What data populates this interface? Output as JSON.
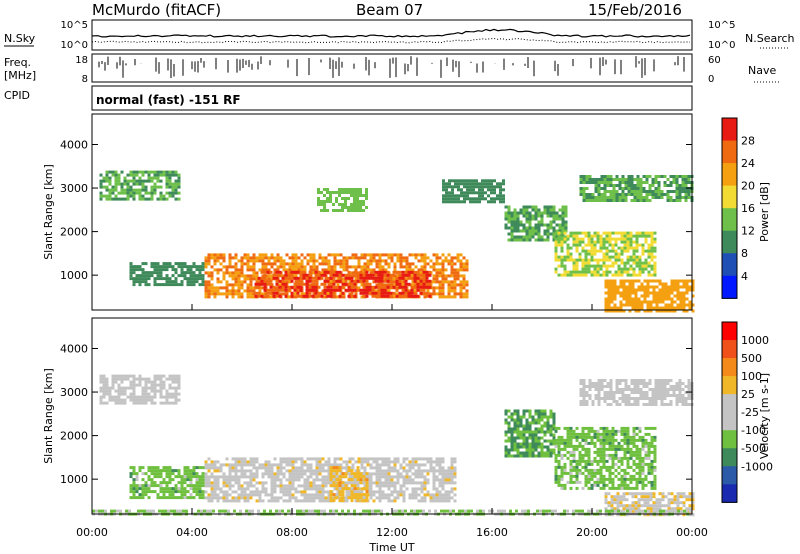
{
  "header": {
    "station": "McMurdo (fitACF)",
    "beam": "Beam 07",
    "date": "15/Feb/2016"
  },
  "status_panel": {
    "left_label_1": "N.Sky",
    "left_label_2a": "Freq.",
    "left_label_2b": "[MHz]",
    "left_label_3": "CPID",
    "right_label_1": "N.Search",
    "right_label_2": "Nave",
    "left_ticks_top": [
      "10^5",
      "10^0"
    ],
    "left_ticks_mid": [
      "18",
      "8"
    ],
    "right_ticks_top": [
      "10^5",
      "10^0"
    ],
    "right_ticks_mid": [
      "60",
      "0"
    ],
    "cpid_text": "normal (fast) -151 RF"
  },
  "colors": {
    "power_scale": [
      "#0018ff",
      "#1f4fb5",
      "#3f8a5a",
      "#6fc04a",
      "#f2dc33",
      "#f5a011",
      "#f06a12",
      "#e81a14"
    ],
    "velocity_scale": [
      "#ff0000",
      "#f0501a",
      "#f48a1a",
      "#f0b828",
      "#c4c4c4",
      "#c4c4c4",
      "#70c040",
      "#3f8a5a",
      "#2a5aa8",
      "#1a2ab0"
    ]
  },
  "chart_data": [
    {
      "type": "heatmap",
      "panel": "power",
      "xlabel": "",
      "ylabel": "Slant Range [km]",
      "x_ticks": [
        "00:00",
        "04:00",
        "08:00",
        "12:00",
        "16:00",
        "20:00",
        "00:00"
      ],
      "xlim": [
        0,
        24
      ],
      "ylim": [
        200,
        4700
      ],
      "y_ticks": [
        1000,
        2000,
        3000,
        4000
      ],
      "colorbar": {
        "label": "Power [dB]",
        "ticks": [
          "4",
          "8",
          "12",
          "16",
          "20",
          "24",
          "28"
        ],
        "range": [
          0,
          32
        ]
      },
      "regions": [
        {
          "t0": 0.3,
          "t1": 3.5,
          "r0": 2750,
          "r1": 3400,
          "value": 12
        },
        {
          "t0": 1.5,
          "t1": 4.5,
          "r0": 800,
          "r1": 1300,
          "value": 10
        },
        {
          "t0": 4.5,
          "t1": 15.0,
          "r0": 500,
          "r1": 1500,
          "value": 24
        },
        {
          "t0": 6.5,
          "t1": 13.5,
          "r0": 500,
          "r1": 1100,
          "value": 28
        },
        {
          "t0": 9.0,
          "t1": 11.0,
          "r0": 2500,
          "r1": 3000,
          "value": 14
        },
        {
          "t0": 14.0,
          "t1": 16.5,
          "r0": 2700,
          "r1": 3200,
          "value": 10
        },
        {
          "t0": 16.5,
          "t1": 19.0,
          "r0": 1800,
          "r1": 2600,
          "value": 12
        },
        {
          "t0": 18.5,
          "t1": 22.5,
          "r0": 1000,
          "r1": 2000,
          "value": 16
        },
        {
          "t0": 20.5,
          "t1": 24.0,
          "r0": 200,
          "r1": 900,
          "value": 22
        },
        {
          "t0": 19.5,
          "t1": 24.0,
          "r0": 2700,
          "r1": 3300,
          "value": 12
        }
      ]
    },
    {
      "type": "heatmap",
      "panel": "velocity",
      "xlabel": "Time UT",
      "ylabel": "Slant Range [km]",
      "x_ticks": [
        "00:00",
        "04:00",
        "08:00",
        "12:00",
        "16:00",
        "20:00",
        "00:00"
      ],
      "xlim": [
        0,
        24
      ],
      "ylim": [
        200,
        4700
      ],
      "y_ticks": [
        1000,
        2000,
        3000,
        4000
      ],
      "colorbar": {
        "label": "Velocity [m s-1]",
        "ticks": [
          "1000",
          "500",
          "100",
          "25",
          "-25",
          "-100",
          "-500",
          "-1000"
        ],
        "range": [
          -1000,
          1000
        ]
      },
      "regions": [
        {
          "t0": 0.3,
          "t1": 3.5,
          "r0": 2750,
          "r1": 3400,
          "value": 0
        },
        {
          "t0": 1.5,
          "t1": 4.5,
          "r0": 600,
          "r1": 1300,
          "value": -300
        },
        {
          "t0": 4.5,
          "t1": 14.5,
          "r0": 500,
          "r1": 1500,
          "value": 100
        },
        {
          "t0": 9.5,
          "t1": 11.0,
          "r0": 500,
          "r1": 1300,
          "value": 300
        },
        {
          "t0": 16.5,
          "t1": 18.5,
          "r0": 1500,
          "r1": 2600,
          "value": -400
        },
        {
          "t0": 18.5,
          "t1": 22.5,
          "r0": 800,
          "r1": 2200,
          "value": -300
        },
        {
          "t0": 20.5,
          "t1": 24.0,
          "r0": 200,
          "r1": 700,
          "value": 150
        },
        {
          "t0": 0.0,
          "t1": 24.0,
          "r0": 200,
          "r1": 300,
          "value": -200
        },
        {
          "t0": 19.5,
          "t1": 24.0,
          "r0": 2700,
          "r1": 3300,
          "value": 0
        }
      ]
    }
  ]
}
